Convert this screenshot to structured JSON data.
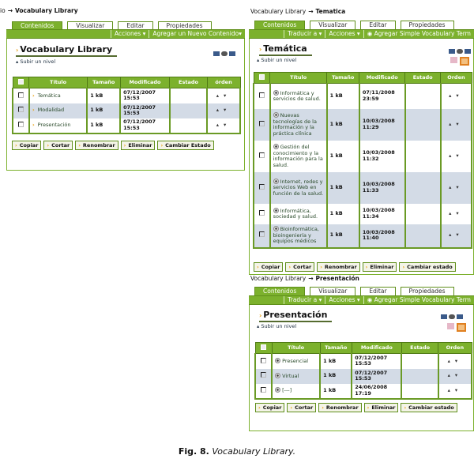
{
  "panels": [
    {
      "breadcrumb": [
        "io",
        "Vocabulary Library"
      ],
      "tabs": [
        "Contenidos",
        "Visualizar",
        "Editar",
        "Propiedades"
      ],
      "menus": [
        "Acciones ▾",
        "Agregar un Nuevo Contenido▾"
      ],
      "title": "Vocabulary Library",
      "up_link": "Subir un nivel",
      "headers": [
        "",
        "Título",
        "Tamaño",
        "Modificado",
        "Estado",
        "órden"
      ],
      "item_icon": "document-icon",
      "rows": [
        {
          "title": "Temática",
          "size": "1 kB",
          "modified": "07/12/2007 15:53",
          "state": ""
        },
        {
          "title": "Modalidad",
          "size": "1 kB",
          "modified": "07/12/2007 15:53",
          "state": ""
        },
        {
          "title": "Presentación",
          "size": "1 kB",
          "modified": "07/12/2007 15:53",
          "state": ""
        }
      ],
      "buttons": [
        "Copiar",
        "Cortar",
        "Renombrar",
        "Eliminar",
        "Cambiar Estado"
      ]
    },
    {
      "breadcrumb": [
        "Vocabulary Library",
        "Tematica"
      ],
      "tabs": [
        "Contenidos",
        "Visualizar",
        "Editar",
        "Propiedades"
      ],
      "menus": [
        "Traducir a ▾",
        "Acciones ▾",
        "◉ Agregar Simple Vocabulary Term"
      ],
      "title": "Temática",
      "up_link": "Subir un nivel",
      "headers": [
        "",
        "Título",
        "Tamaño",
        "Modificado",
        "Estado",
        "Orden"
      ],
      "item_icon": "vocabulary-term-icon",
      "rows": [
        {
          "title": "Informática y servicios de salud.",
          "size": "1 kB",
          "modified": "07/11/2008 23:59",
          "state": ""
        },
        {
          "title": "Nuevas tecnologías de la información y la práctica clínica",
          "size": "1 kB",
          "modified": "10/03/2008 11:29",
          "state": ""
        },
        {
          "title": "Gestión del conocimiento y la información para la salud.",
          "size": "1 kB",
          "modified": "10/03/2008 11:32",
          "state": ""
        },
        {
          "title": "Internet, redes y servicios Web en función de la salud.",
          "size": "1 kB",
          "modified": "10/03/2008 11:33",
          "state": ""
        },
        {
          "title": "Informática, sociedad y salud.",
          "size": "1 kB",
          "modified": "10/03/2008 11:34",
          "state": ""
        },
        {
          "title": "Bioinformática, bioingeniería y equipos médicos",
          "size": "1 kB",
          "modified": "10/03/2008 11:40",
          "state": ""
        }
      ],
      "buttons": [
        "Copiar",
        "Cortar",
        "Renombrar",
        "Eliminar",
        "Cambiar estado"
      ]
    },
    {
      "breadcrumb": [
        "Vocabulary Library",
        "Presentación"
      ],
      "tabs": [
        "Contenidos",
        "Visualizar",
        "Editar",
        "Propiedades"
      ],
      "menus": [
        "Traducir a ▾",
        "Acciones ▾",
        "◉ Agregar Simple Vocabulary Term"
      ],
      "title": "Presentación",
      "up_link": "Subir un nivel",
      "headers": [
        "",
        "Título",
        "Tamaño",
        "Modificado",
        "Estado",
        "Orden"
      ],
      "item_icon": "vocabulary-term-icon",
      "rows": [
        {
          "title": "Presencial",
          "size": "1 kB",
          "modified": "07/12/2007 15:53",
          "state": ""
        },
        {
          "title": "Virtual",
          "size": "1 kB",
          "modified": "07/12/2007 15:53",
          "state": ""
        },
        {
          "title": "[---]",
          "size": "1 kB",
          "modified": "24/06/2008 17:19",
          "state": ""
        }
      ],
      "buttons": [
        "Copiar",
        "Cortar",
        "Renombrar",
        "Eliminar",
        "Cambiar estado"
      ]
    }
  ],
  "caption": {
    "label": "Fig. 8.",
    "text": "Vocabulary Library."
  },
  "colors": {
    "accent": "#7cb12d",
    "row_alt": "#d3dbe6",
    "icon": "#e8a010"
  }
}
